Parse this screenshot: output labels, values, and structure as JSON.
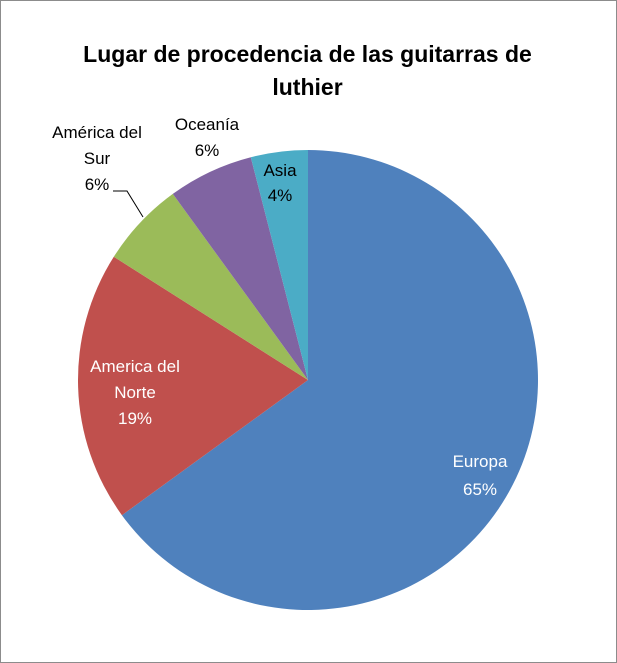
{
  "chart_data": {
    "type": "pie",
    "title": "Lugar de procedencia de las guitarras de luthier",
    "slices": [
      {
        "name": "Europa",
        "value": 65,
        "label": "65%",
        "color": "#4f81bd"
      },
      {
        "name": "America del Norte",
        "value": 19,
        "label": "19%",
        "color": "#c0504d"
      },
      {
        "name": "América del Sur",
        "value": 6,
        "label": "6%",
        "color": "#9bbb59"
      },
      {
        "name": "Oceanía",
        "value": 6,
        "label": "6%",
        "color": "#8064a2"
      },
      {
        "name": "Asia",
        "value": 4,
        "label": "4%",
        "color": "#4bacc6"
      }
    ],
    "legend": "none",
    "data_labels": "category and percent"
  }
}
